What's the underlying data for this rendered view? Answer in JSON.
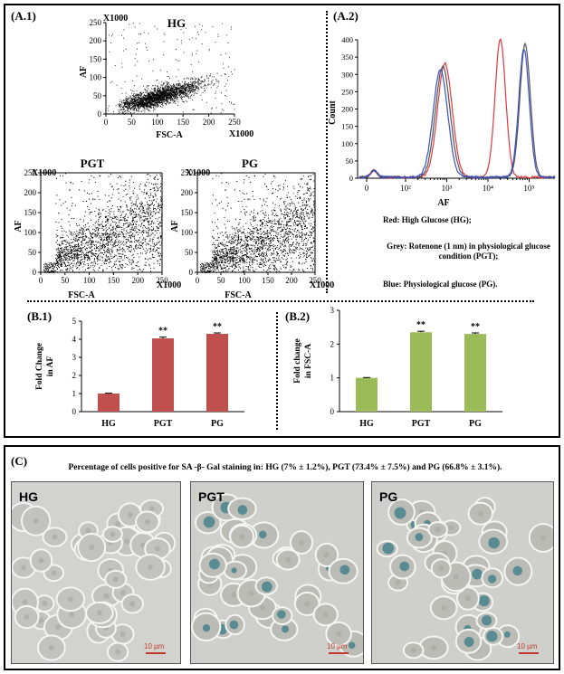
{
  "panels": {
    "a1": "(A.1)",
    "a2": "(A.2)",
    "b1": "(B.1)",
    "b2": "(B.2)",
    "c": "(C)"
  },
  "scatter_common": {
    "x1000": "X1000",
    "xlabel": "FSC-A",
    "ylabel": "AF"
  },
  "legend_text": {
    "red": "Red: High Glucose (HG);",
    "grey": "Grey: Rotenone (1 nm) in physiological glucose condition (PGT);",
    "blue": "Blue: Physiological glucose (PG)."
  },
  "colors": {
    "red": "#e0393e",
    "grey": "#555555",
    "blue": "#3b4fc8",
    "bar_red": "#c0504d",
    "bar_green": "#9bbb59"
  },
  "caption": "Percentage of cells positive for SA -β- Gal staining in: HG (7% ± 1.2%), PGT (73.4% ± 7.5%) and PG (66.8% ± 3.1%).",
  "micrographs": [
    {
      "label": "HG",
      "scale": "10 µm",
      "tint": "none"
    },
    {
      "label": "PGT",
      "scale": "10 µm",
      "tint": "blue"
    },
    {
      "label": "PG",
      "scale": "10 µm",
      "tint": "blue"
    }
  ],
  "chart_data": [
    {
      "type": "scatter",
      "title": "HG",
      "xlabel": "FSC-A",
      "ylabel": "AF",
      "xlim": [
        0,
        250
      ],
      "ylim": [
        0,
        250
      ],
      "xticks": [
        0,
        50,
        100,
        150,
        200,
        250
      ],
      "yticks": [
        0,
        50,
        100,
        150,
        200,
        250
      ],
      "axis_multiplier": "X1000",
      "grid": false
    },
    {
      "type": "scatter",
      "title": "PGT",
      "xlabel": "FSC-A",
      "ylabel": "AF",
      "xlim": [
        0,
        250
      ],
      "ylim": [
        0,
        250
      ],
      "xticks": [
        0,
        50,
        100,
        150,
        200,
        250
      ],
      "yticks": [
        0,
        50,
        100,
        150,
        200,
        250
      ],
      "axis_multiplier": "X1000",
      "grid": false
    },
    {
      "type": "scatter",
      "title": "PG",
      "xlabel": "FSC-A",
      "ylabel": "AF",
      "xlim": [
        0,
        250
      ],
      "ylim": [
        0,
        250
      ],
      "xticks": [
        0,
        50,
        100,
        150,
        200,
        250
      ],
      "yticks": [
        0,
        50,
        100,
        150,
        200,
        250
      ],
      "axis_multiplier": "X1000",
      "grid": false
    },
    {
      "type": "line",
      "xlabel": "AF",
      "ylabel": "Count",
      "xscale": "log",
      "ylim": [
        0,
        400
      ],
      "yticks": [
        0,
        50,
        100,
        150,
        200,
        250,
        300,
        350,
        400
      ],
      "xtick_labels": [
        "0",
        "10²",
        "10³",
        "10⁴",
        "10⁵"
      ],
      "series": [
        {
          "color": "red",
          "peaks": [
            {
              "x": 900,
              "y": 330
            },
            {
              "x": 20000,
              "y": 400
            }
          ]
        },
        {
          "color": "grey",
          "peaks": [
            {
              "x": 800,
              "y": 320
            },
            {
              "x": 80000,
              "y": 385
            }
          ]
        },
        {
          "color": "blue",
          "peaks": [
            {
              "x": 700,
              "y": 310
            },
            {
              "x": 75000,
              "y": 370
            }
          ]
        }
      ]
    },
    {
      "type": "bar",
      "ylabel": "Fold Change in AF",
      "categories": [
        "HG",
        "PGT",
        "PG"
      ],
      "values": [
        1.0,
        4.05,
        4.3
      ],
      "errors": [
        0.02,
        0.07,
        0.05
      ],
      "significance": [
        "",
        "**",
        "**"
      ],
      "ylim": [
        0,
        5
      ],
      "yticks": [
        0,
        1,
        2,
        3,
        4,
        5
      ],
      "color": "bar_red"
    },
    {
      "type": "bar",
      "ylabel": "Fold change in FSC-A",
      "categories": [
        "HG",
        "PGT",
        "PG"
      ],
      "values": [
        1.0,
        2.35,
        2.3
      ],
      "errors": [
        0.01,
        0.03,
        0.03
      ],
      "significance": [
        "",
        "**",
        "**"
      ],
      "ylim": [
        0,
        3
      ],
      "yticks": [
        0,
        1,
        2,
        3
      ],
      "color": "bar_green"
    }
  ]
}
